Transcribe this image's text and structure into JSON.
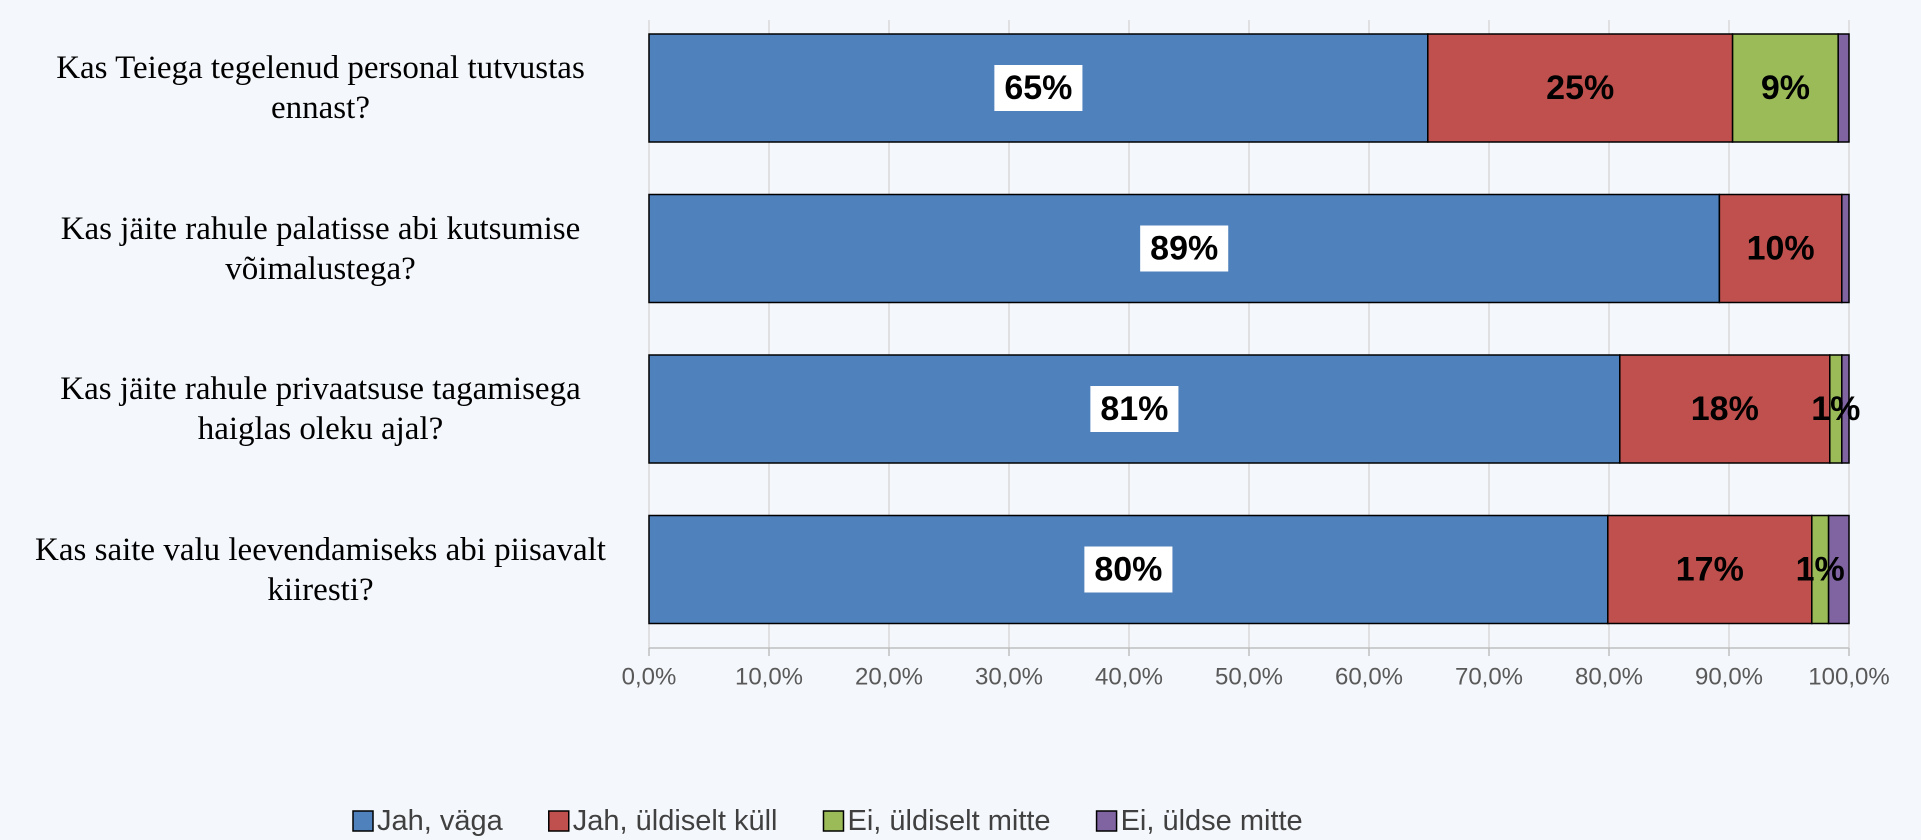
{
  "chart_data": {
    "type": "stacked_barh",
    "categories": [
      "Kas Teiega tegelenud personal tutvustas ennast?",
      "Kas jäite rahule palatisse abi kutsumise võimalustega?",
      "Kas jäite rahule privaatsuse tagamisega haiglas oleku ajal?",
      "Kas saite valu leevendamiseks abi piisavalt kiiresti?"
    ],
    "series": [
      {
        "name": "Jah, väga",
        "color": "#4f81bd",
        "values": [
          64.9,
          89.2,
          80.9,
          79.9
        ],
        "value_labels": [
          "65%",
          "89%",
          "81%",
          "80%"
        ]
      },
      {
        "name": "Jah, üldiselt küll",
        "color": "#c0504d",
        "values": [
          25.4,
          10.2,
          17.5,
          17
        ],
        "value_labels": [
          "25%",
          "10%",
          "18%",
          "17%"
        ]
      },
      {
        "name": "Ei, üldiselt mitte",
        "color": "#9bbb59",
        "values": [
          8.8,
          0,
          1,
          1.4
        ],
        "value_labels": [
          "9%",
          null,
          "1%",
          "1%"
        ]
      },
      {
        "name": "Ei, üldse mitte",
        "color": "#8064a2",
        "values": [
          0.9,
          0.6,
          0.6,
          1.7
        ],
        "value_labels": [
          null,
          null,
          null,
          null
        ]
      }
    ],
    "xlim": [
      0,
      100
    ],
    "xticks": [
      {
        "value": 0,
        "label": "0,0%"
      },
      {
        "value": 10,
        "label": "10,0%"
      },
      {
        "value": 20,
        "label": "20,0%"
      },
      {
        "value": 30,
        "label": "30,0%"
      },
      {
        "value": 40,
        "label": "40,0%"
      },
      {
        "value": 50,
        "label": "50,0%"
      },
      {
        "value": 60,
        "label": "60,0%"
      },
      {
        "value": 70,
        "label": "70,0%"
      },
      {
        "value": 80,
        "label": "80,0%"
      },
      {
        "value": 90,
        "label": "90,0%"
      },
      {
        "value": 100,
        "label": "100,0%"
      }
    ],
    "grid": true,
    "legend": "bottom"
  }
}
